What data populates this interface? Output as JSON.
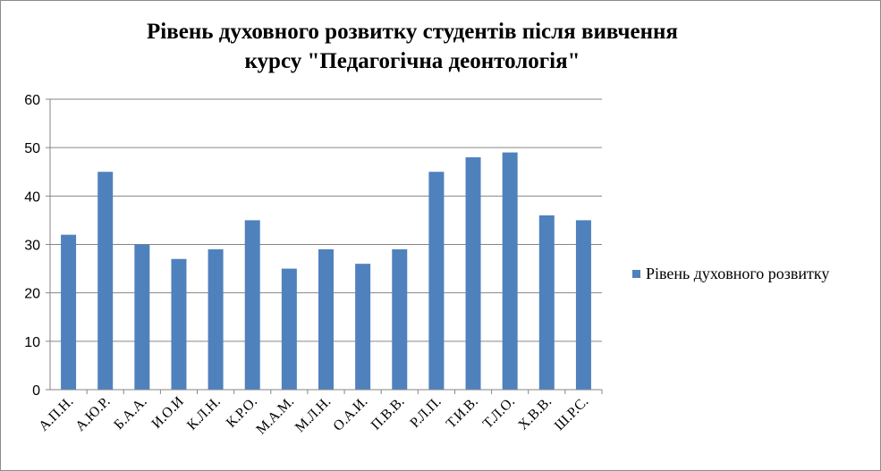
{
  "chart_data": {
    "type": "bar",
    "title": "Рівень духовного розвитку студентів після вивчення курсу \"Педагогічна деонтологія\"",
    "title_lines": [
      "Рівень духовного розвитку студентів після вивчення",
      "курсу \"Педагогічна деонтологія\""
    ],
    "categories": [
      "А.П.Н.",
      "А.Ю.Р.",
      "Б.А.А.",
      "И.О.И",
      "К.Л.Н.",
      "К.Р.О.",
      "М.А.М.",
      "М.Л.Н.",
      "О.А.И.",
      "П.В.В.",
      "Р.Л.П.",
      "Т.И.В.",
      "Т.Л.О.",
      "Х.В.В.",
      "Ш.Р.С."
    ],
    "series": [
      {
        "name": "Рівень духовного розвитку",
        "values": [
          32,
          45,
          30,
          27,
          29,
          35,
          25,
          29,
          26,
          29,
          45,
          48,
          49,
          36,
          35
        ],
        "color": "#4f81bd"
      }
    ],
    "ylim": [
      0,
      60
    ],
    "yticks": [
      0,
      10,
      20,
      30,
      40,
      50,
      60
    ],
    "grid": true,
    "legend_position": "right"
  }
}
